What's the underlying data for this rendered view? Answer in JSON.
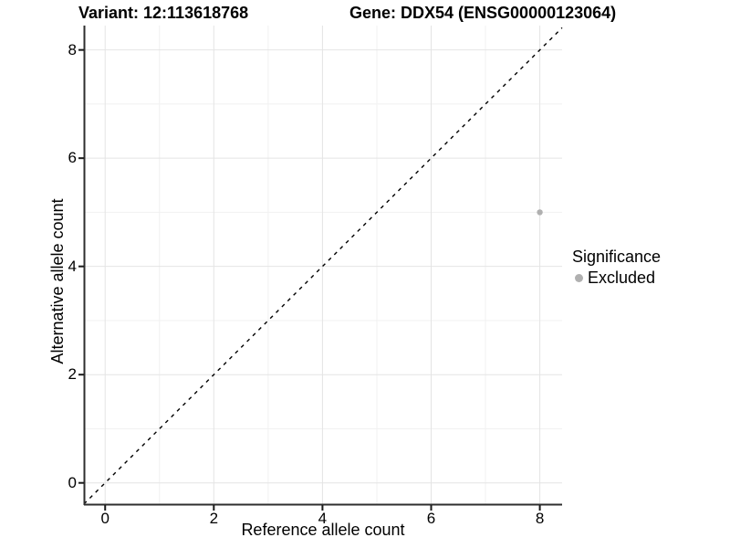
{
  "figure": {
    "title_left": "Variant: 12:113618768",
    "title_right": "Gene: DDX54 (ENSG00000123064)"
  },
  "chart_data": {
    "type": "scatter",
    "title_left": "Variant: 12:113618768",
    "title_right": "Gene: DDX54 (ENSG00000123064)",
    "xlabel": "Reference allele count",
    "ylabel": "Alternative allele count",
    "xlim": [
      -0.39,
      8.41
    ],
    "ylim": [
      -0.41,
      8.45
    ],
    "x_ticks": [
      0,
      2,
      4,
      6,
      8
    ],
    "y_ticks": [
      0,
      2,
      4,
      6,
      8
    ],
    "x_minor_ticks": [
      1,
      3,
      5,
      7
    ],
    "y_minor_ticks": [
      1,
      3,
      5,
      7
    ],
    "grid": "on",
    "points": [
      {
        "x": 8,
        "y": 5,
        "series": "Excluded"
      }
    ],
    "reference_line": {
      "kind": "identity y=x",
      "style": "dashed",
      "color": "#000000"
    },
    "legend": {
      "position": "right",
      "title": "Significance",
      "items": [
        {
          "label": "Excluded",
          "color": "#b0b0b0"
        }
      ]
    },
    "colors": {
      "point": "#b0b0b0",
      "grid_major": "#e4e4e4",
      "grid_minor": "#f1f1f1",
      "axis_line": "#2e2e2e",
      "tick": "#1a1a1a",
      "text": "#000000",
      "background": "#ffffff"
    }
  }
}
